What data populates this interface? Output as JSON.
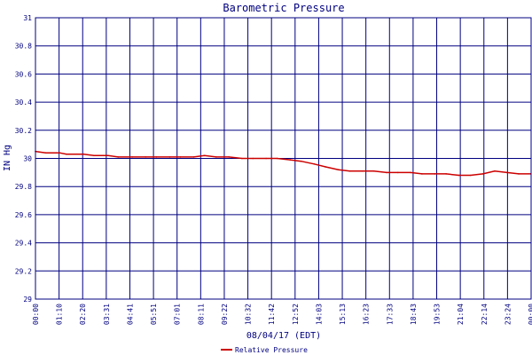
{
  "colors": {
    "frame": "#000080",
    "grid": "#000080",
    "series": "#cc0000",
    "text": "#000080",
    "background": "#ffffff"
  },
  "chart_data": {
    "type": "line",
    "title": "Barometric Pressure",
    "xlabel": "08/04/17 (EDT)",
    "ylabel": "IN Hg",
    "ylim": [
      29,
      31
    ],
    "yticks": [
      "29",
      "29.2",
      "29.4",
      "29.6",
      "29.8",
      "30",
      "30.2",
      "30.4",
      "30.6",
      "30.8",
      "31"
    ],
    "xticks": [
      "00:00",
      "01:10",
      "02:20",
      "03:31",
      "04:41",
      "05:51",
      "07:01",
      "08:11",
      "09:22",
      "10:32",
      "11:42",
      "12:52",
      "14:03",
      "15:13",
      "16:23",
      "17:33",
      "18:43",
      "19:53",
      "21:04",
      "22:14",
      "23:24",
      "00:00"
    ],
    "grid": true,
    "legend_position": "bottom",
    "series": [
      {
        "name": "Relative Pressure",
        "x": [
          "00:00",
          "00:30",
          "01:00",
          "01:10",
          "01:30",
          "02:00",
          "02:20",
          "02:50",
          "03:31",
          "04:00",
          "04:41",
          "05:20",
          "05:51",
          "06:30",
          "07:01",
          "07:40",
          "08:11",
          "08:45",
          "09:22",
          "10:00",
          "10:32",
          "11:10",
          "11:42",
          "12:20",
          "12:52",
          "13:30",
          "14:03",
          "14:40",
          "15:13",
          "15:50",
          "16:23",
          "17:00",
          "17:33",
          "18:10",
          "18:43",
          "19:20",
          "19:53",
          "20:30",
          "21:04",
          "21:40",
          "22:14",
          "22:50",
          "23:24",
          "23:59"
        ],
        "values": [
          30.05,
          30.04,
          30.04,
          30.04,
          30.03,
          30.03,
          30.03,
          30.02,
          30.02,
          30.01,
          30.01,
          30.01,
          30.01,
          30.01,
          30.01,
          30.01,
          30.02,
          30.01,
          30.01,
          30.0,
          30.0,
          30.0,
          30.0,
          29.99,
          29.98,
          29.96,
          29.94,
          29.92,
          29.91,
          29.91,
          29.91,
          29.9,
          29.9,
          29.9,
          29.89,
          29.89,
          29.89,
          29.88,
          29.88,
          29.89,
          29.91,
          29.9,
          29.89,
          29.89
        ]
      }
    ]
  }
}
